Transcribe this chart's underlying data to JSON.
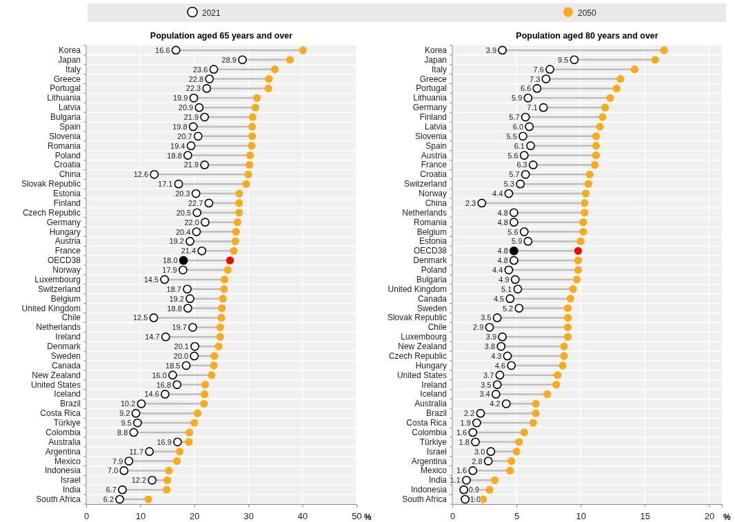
{
  "chart_data": [
    {
      "type": "scatter",
      "orientation": "horizontal",
      "title": "Population aged 65 years and over",
      "xlabel": "%",
      "categories": [
        "Korea",
        "Japan",
        "Italy",
        "Greece",
        "Portugal",
        "Lithuania",
        "Latvia",
        "Bulgaria",
        "Spain",
        "Slovenia",
        "Romania",
        "Poland",
        "Croatia",
        "China",
        "Slovak Republic",
        "Estonia",
        "Finland",
        "Czech Republic",
        "Germany",
        "Hungary",
        "Austria",
        "France",
        "OECD38",
        "Norway",
        "Luxembourg",
        "Switzerland",
        "Belgium",
        "United Kingdom",
        "Chile",
        "Netherlands",
        "Ireland",
        "Denmark",
        "Sweden",
        "Canada",
        "New Zealand",
        "United States",
        "Iceland",
        "Brazil",
        "Costa Rica",
        "Türkiye",
        "Colombia",
        "Australia",
        "Argentina",
        "Mexico",
        "Indonesia",
        "Israel",
        "India",
        "South Africa"
      ],
      "xlim": [
        0,
        50
      ],
      "xticks": [
        0,
        10,
        20,
        30,
        40,
        50
      ],
      "grid": true,
      "legend": "top",
      "marker": "circle",
      "series": [
        {
          "name": "2021",
          "color": "#ffffff",
          "colors": [
            "#ffffff",
            "#ffffff",
            "#ffffff",
            "#ffffff",
            "#ffffff",
            "#ffffff",
            "#ffffff",
            "#ffffff",
            "#ffffff",
            "#ffffff",
            "#ffffff",
            "#ffffff",
            "#ffffff",
            "#ffffff",
            "#ffffff",
            "#ffffff",
            "#ffffff",
            "#ffffff",
            "#ffffff",
            "#ffffff",
            "#ffffff",
            "#ffffff",
            "#000000",
            "#ffffff",
            "#ffffff",
            "#ffffff",
            "#ffffff",
            "#ffffff",
            "#ffffff",
            "#ffffff",
            "#ffffff",
            "#ffffff",
            "#ffffff",
            "#ffffff",
            "#ffffff",
            "#ffffff",
            "#ffffff",
            "#ffffff",
            "#ffffff",
            "#ffffff",
            "#ffffff",
            "#ffffff",
            "#ffffff",
            "#ffffff",
            "#ffffff",
            "#ffffff",
            "#ffffff",
            "#ffffff"
          ],
          "values": [
            16.6,
            28.9,
            23.6,
            22.8,
            22.3,
            19.9,
            20.9,
            21.9,
            19.8,
            20.7,
            19.4,
            18.8,
            21.9,
            12.6,
            17.1,
            20.3,
            22.7,
            20.5,
            22.0,
            20.4,
            19.2,
            21.4,
            18.0,
            17.9,
            14.5,
            18.7,
            19.2,
            18.8,
            12.5,
            19.7,
            14.7,
            20.1,
            20.0,
            18.5,
            16.0,
            16.8,
            14.6,
            10.2,
            9.2,
            9.5,
            8.8,
            16.9,
            11.7,
            7.9,
            7.0,
            12.2,
            6.7,
            6.2
          ],
          "value_labels": [
            "16.6",
            "28.9",
            "23.6",
            "22.8",
            "22.3",
            "19.9",
            "20.9",
            "21.9",
            "19.8",
            "20.7",
            "19.4",
            "18.8",
            "21.9",
            "12.6",
            "17.1",
            "20.3",
            "22.7",
            "20.5",
            "22.0",
            "20.4",
            "19.2",
            "21.4",
            "18.0",
            "17.9",
            "14.5",
            "18.7",
            "19.2",
            "18.8",
            "12.5",
            "19.7",
            "14.7",
            "20.1",
            "20.0",
            "18.5",
            "16.0",
            "16.8",
            "14.6",
            "10.2",
            "9.2",
            "9.5",
            "8.8",
            "16.9",
            "11.7",
            "7.9",
            "7.0",
            "12.2",
            "6.7",
            "6.2"
          ]
        },
        {
          "name": "2050",
          "color": "#f8ab1c",
          "colors": [
            "#f8ab1c",
            "#f8ab1c",
            "#f8ab1c",
            "#f8ab1c",
            "#f8ab1c",
            "#f8ab1c",
            "#f8ab1c",
            "#f8ab1c",
            "#f8ab1c",
            "#f8ab1c",
            "#f8ab1c",
            "#f8ab1c",
            "#f8ab1c",
            "#f8ab1c",
            "#f8ab1c",
            "#f8ab1c",
            "#f8ab1c",
            "#f8ab1c",
            "#f8ab1c",
            "#f8ab1c",
            "#f8ab1c",
            "#f8ab1c",
            "#ff0000",
            "#f8ab1c",
            "#f8ab1c",
            "#f8ab1c",
            "#f8ab1c",
            "#f8ab1c",
            "#f8ab1c",
            "#f8ab1c",
            "#f8ab1c",
            "#f8ab1c",
            "#f8ab1c",
            "#f8ab1c",
            "#f8ab1c",
            "#f8ab1c",
            "#f8ab1c",
            "#f8ab1c",
            "#f8ab1c",
            "#f8ab1c",
            "#f8ab1c",
            "#f8ab1c",
            "#f8ab1c",
            "#f8ab1c",
            "#f8ab1c",
            "#f8ab1c",
            "#f8ab1c",
            "#f8ab1c"
          ],
          "values": [
            40.1,
            37.7,
            34.9,
            33.8,
            33.7,
            31.6,
            31.3,
            30.8,
            30.7,
            30.7,
            30.6,
            30.3,
            30.2,
            30.0,
            29.6,
            28.3,
            28.3,
            28.3,
            28.0,
            27.7,
            27.6,
            27.3,
            26.6,
            26.2,
            25.6,
            25.5,
            25.3,
            25.1,
            25.0,
            24.8,
            24.8,
            24.5,
            23.7,
            23.6,
            23.2,
            22.0,
            21.9,
            21.8,
            20.6,
            20.0,
            19.1,
            19.0,
            17.3,
            16.8,
            15.3,
            15.0,
            14.9,
            11.5
          ]
        }
      ]
    },
    {
      "type": "scatter",
      "orientation": "horizontal",
      "title": "Population aged 80 years and over",
      "xlabel": "%",
      "categories": [
        "Korea",
        "Japan",
        "Italy",
        "Greece",
        "Portugal",
        "Lithuania",
        "Germany",
        "Finland",
        "Latvia",
        "Slovenia",
        "Spain",
        "Austria",
        "France",
        "Croatia",
        "Switzerland",
        "Norway",
        "China",
        "Netherlands",
        "Romania",
        "Belgium",
        "Estonia",
        "OECD38",
        "Denmark",
        "Poland",
        "Bulgaria",
        "United Kingdom",
        "Canada",
        "Sweden",
        "Slovak Republic",
        "Chile",
        "Luxembourg",
        "New Zealand",
        "Czech Republic",
        "Hungary",
        "United States",
        "Ireland",
        "Iceland",
        "Australia",
        "Brazil",
        "Costa Rica",
        "Colombia",
        "Türkiye",
        "Israel",
        "Argentina",
        "Mexico",
        "India",
        "Indonesia",
        "South Africa"
      ],
      "xlim": [
        0,
        21
      ],
      "xticks": [
        0,
        5,
        10,
        15,
        20
      ],
      "grid": true,
      "marker": "circle",
      "series": [
        {
          "color": "#ffffff",
          "colors": [
            "#ffffff",
            "#ffffff",
            "#ffffff",
            "#ffffff",
            "#ffffff",
            "#ffffff",
            "#ffffff",
            "#ffffff",
            "#ffffff",
            "#ffffff",
            "#ffffff",
            "#ffffff",
            "#ffffff",
            "#ffffff",
            "#ffffff",
            "#ffffff",
            "#ffffff",
            "#ffffff",
            "#ffffff",
            "#ffffff",
            "#ffffff",
            "#000000",
            "#ffffff",
            "#ffffff",
            "#ffffff",
            "#ffffff",
            "#ffffff",
            "#ffffff",
            "#ffffff",
            "#ffffff",
            "#ffffff",
            "#ffffff",
            "#ffffff",
            "#ffffff",
            "#ffffff",
            "#ffffff",
            "#ffffff",
            "#ffffff",
            "#ffffff",
            "#ffffff",
            "#ffffff",
            "#ffffff",
            "#ffffff",
            "#ffffff",
            "#ffffff",
            "#ffffff",
            "#ffffff",
            "#ffffff"
          ],
          "values": [
            3.9,
            9.5,
            7.6,
            7.3,
            6.6,
            5.9,
            7.1,
            5.7,
            6.0,
            5.5,
            6.1,
            5.6,
            6.3,
            5.7,
            5.3,
            4.4,
            2.3,
            4.8,
            4.8,
            5.6,
            5.9,
            4.8,
            4.8,
            4.4,
            4.9,
            5.1,
            4.5,
            5.2,
            3.5,
            2.9,
            3.9,
            3.8,
            4.3,
            4.6,
            3.7,
            3.5,
            3.4,
            4.2,
            2.2,
            1.9,
            1.6,
            1.8,
            3.0,
            2.8,
            1.6,
            1.1,
            0.9,
            1.0
          ],
          "value_labels": [
            "3.9",
            "9.5",
            "7.6",
            "7.3",
            "6.6",
            "5.9",
            "7.1",
            "5.7",
            "6.0",
            "5.5",
            "6.1",
            "5.6",
            "6.3",
            "5.7",
            "5.3",
            "4.4",
            "2.3",
            "4.8",
            "4.8",
            "5.6",
            "5.9",
            "4.8",
            "4.8",
            "4.4",
            "4.9",
            "5.1",
            "4.5",
            "5.2",
            "3.5",
            "2.9",
            "3.9",
            "3.8",
            "4.3",
            "4.6",
            "3.7",
            "3.5",
            "3.4",
            "4.2",
            "2.2",
            "1.9",
            "1.6",
            "1.8",
            "3.0",
            "2.8",
            "1.6",
            "1.1",
            "0.9",
            "1.0"
          ]
        },
        {
          "color": "#f8ab1c",
          "colors": [
            "#f8ab1c",
            "#f8ab1c",
            "#f8ab1c",
            "#f8ab1c",
            "#f8ab1c",
            "#f8ab1c",
            "#f8ab1c",
            "#f8ab1c",
            "#f8ab1c",
            "#f8ab1c",
            "#f8ab1c",
            "#f8ab1c",
            "#f8ab1c",
            "#f8ab1c",
            "#f8ab1c",
            "#f8ab1c",
            "#f8ab1c",
            "#f8ab1c",
            "#f8ab1c",
            "#f8ab1c",
            "#f8ab1c",
            "#ff0000",
            "#f8ab1c",
            "#f8ab1c",
            "#f8ab1c",
            "#f8ab1c",
            "#f8ab1c",
            "#f8ab1c",
            "#f8ab1c",
            "#f8ab1c",
            "#f8ab1c",
            "#f8ab1c",
            "#f8ab1c",
            "#f8ab1c",
            "#f8ab1c",
            "#f8ab1c",
            "#f8ab1c",
            "#f8ab1c",
            "#f8ab1c",
            "#f8ab1c",
            "#f8ab1c",
            "#f8ab1c",
            "#f8ab1c",
            "#f8ab1c",
            "#f8ab1c",
            "#f8ab1c",
            "#f8ab1c",
            "#f8ab1c"
          ],
          "values": [
            16.5,
            15.8,
            14.2,
            13.1,
            12.8,
            12.3,
            11.9,
            11.7,
            11.5,
            11.2,
            11.2,
            11.2,
            11.1,
            10.7,
            10.6,
            10.4,
            10.3,
            10.3,
            10.2,
            10.2,
            10.0,
            9.8,
            9.8,
            9.8,
            9.7,
            9.4,
            9.2,
            9.0,
            9.0,
            9.0,
            9.0,
            8.7,
            8.7,
            8.6,
            8.2,
            8.1,
            7.4,
            6.5,
            6.5,
            6.3,
            5.6,
            5.2,
            5.0,
            4.6,
            4.5,
            3.3,
            2.9,
            2.4
          ]
        }
      ]
    }
  ]
}
